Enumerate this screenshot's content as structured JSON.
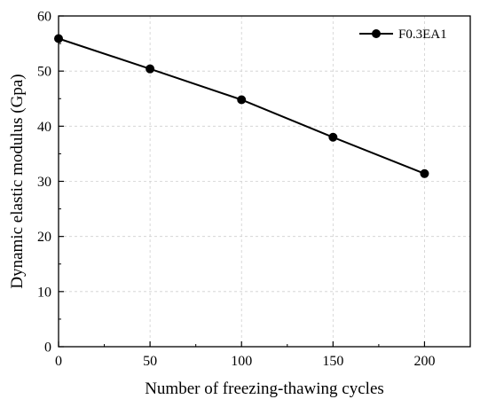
{
  "chart_data": {
    "type": "line",
    "xlabel": "Number of freezing-thawing cycles",
    "ylabel": "Dynamic elastic modulus (Gpa)",
    "xlim": [
      0,
      225
    ],
    "ylim": [
      0,
      60
    ],
    "xticks": [
      0,
      50,
      100,
      150,
      200
    ],
    "yticks": [
      0,
      10,
      20,
      30,
      40,
      50,
      60
    ],
    "grid": true,
    "legend_position": "top-right",
    "series": [
      {
        "name": "F0.3EA1",
        "color": "#000000",
        "marker": "circle",
        "x": [
          0,
          50,
          100,
          150,
          200
        ],
        "y": [
          55.9,
          50.4,
          44.8,
          38.0,
          31.4
        ]
      }
    ]
  }
}
